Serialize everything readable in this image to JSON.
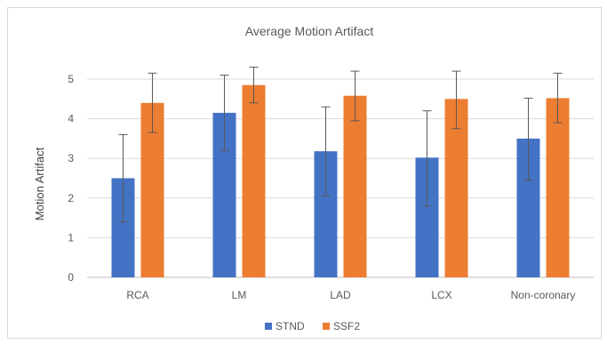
{
  "chart_data": {
    "type": "bar",
    "title": "Average Motion Artifact",
    "xlabel": "",
    "ylabel": "Motion Artifact",
    "ylim": [
      0,
      5.5
    ],
    "yticks": [
      0,
      1,
      2,
      3,
      4,
      5
    ],
    "grid": true,
    "legend_position": "bottom",
    "categories": [
      "RCA",
      "LM",
      "LAD",
      "LCX",
      "Non-coronary"
    ],
    "series": [
      {
        "name": "STND",
        "color": "#4472C4",
        "values": [
          2.5,
          4.15,
          3.18,
          3.02,
          3.5
        ],
        "error_low": [
          1.4,
          3.2,
          2.05,
          1.8,
          2.45
        ],
        "error_high": [
          3.6,
          5.1,
          4.3,
          4.2,
          4.52
        ]
      },
      {
        "name": "SSF2",
        "color": "#ED7D31",
        "values": [
          4.4,
          4.85,
          4.58,
          4.5,
          4.52
        ],
        "error_low": [
          3.65,
          4.4,
          3.95,
          3.75,
          3.9
        ],
        "error_high": [
          5.15,
          5.3,
          5.2,
          5.2,
          5.15
        ]
      }
    ]
  }
}
